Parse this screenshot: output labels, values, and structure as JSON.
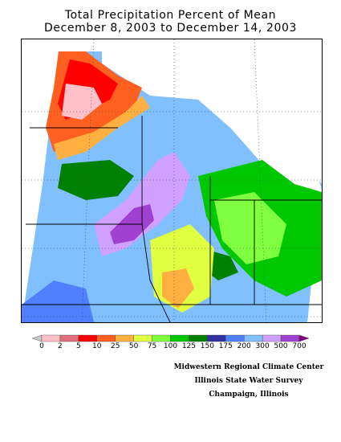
{
  "title": {
    "line1": "Total Precipitation Percent of Mean",
    "line2": "December 8, 2003 to December 14, 2003"
  },
  "legend": {
    "thresholds": [
      "0",
      "2",
      "5",
      "10",
      "25",
      "50",
      "75",
      "100",
      "125",
      "150",
      "175",
      "200",
      "300",
      "500",
      "700"
    ],
    "colors": [
      "#c8c8c8",
      "#ffc0c8",
      "#e07080",
      "#ff0000",
      "#ff6020",
      "#ffb040",
      "#e0ff40",
      "#80ff40",
      "#00c800",
      "#008000",
      "#3030a0",
      "#5080ff",
      "#80c0ff",
      "#d0a0ff",
      "#a040d0",
      "#800080"
    ]
  },
  "credits": {
    "line1": "Midwestern Regional Climate Center",
    "line2": "Illinois State Water Survey",
    "line3": "Champaign, Illinois"
  }
}
